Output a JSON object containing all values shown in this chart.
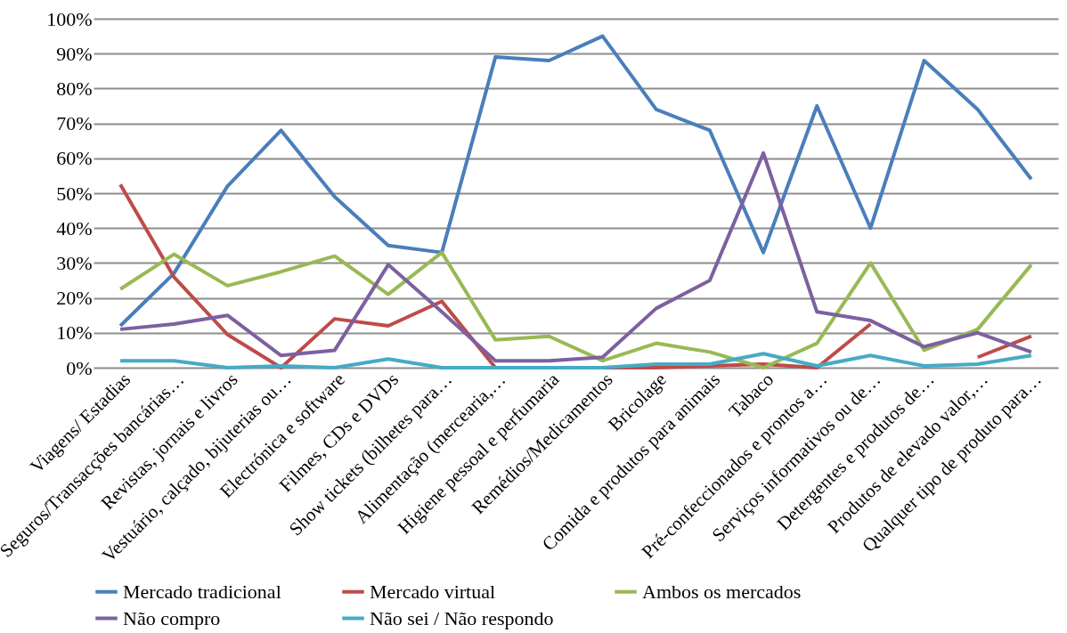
{
  "chart_data": {
    "type": "line",
    "categories": [
      "Viagens/ Estadias",
      "Seguros/Transacções bancárias…",
      "Revistas, jornais e livros",
      "Vestuário, calçado, bijuterias ou…",
      "Electrónica e software",
      "Filmes, CDs e DVDs",
      "Show tickets (bilhetes para…",
      "Alimentação (mercearia,…",
      "Higiene pessoal e perfumaria",
      "Remédios/Medicamentos",
      "Bricolage",
      "Comida e produtos para animais",
      "Tabaco",
      "Pré-confeccionados e prontos a…",
      "Serviços informativos ou de…",
      "Detergentes e produtos de…",
      "Produtos de elevado valor,…",
      "Qualquer tipo de produto para…"
    ],
    "series": [
      {
        "name": "Mercado tradicional",
        "color": "#4a7ebb",
        "values": [
          12,
          27,
          52,
          68,
          49,
          35,
          33,
          89,
          88,
          95,
          74,
          68,
          33,
          75,
          40,
          88,
          74,
          54
        ]
      },
      {
        "name": "Mercado virtual",
        "color": "#be4b48",
        "values": [
          52.5,
          26,
          9.5,
          0,
          14,
          12,
          19,
          0,
          0,
          0,
          0,
          0.5,
          1,
          0,
          12.5,
          null,
          3,
          9
        ]
      },
      {
        "name": "Ambos os mercados",
        "color": "#98b954",
        "values": [
          22.5,
          32.5,
          23.5,
          27.5,
          32,
          21,
          33,
          8,
          9,
          2,
          7,
          4.5,
          0,
          7,
          30,
          5,
          11,
          29.5
        ]
      },
      {
        "name": "Não compro",
        "color": "#7d60a0",
        "values": [
          11,
          12.5,
          15,
          3.5,
          5,
          29.5,
          16,
          2,
          2,
          3,
          17,
          25,
          61.5,
          16,
          13.5,
          6,
          10,
          4.5
        ]
      },
      {
        "name": "Não sei / Não respondo",
        "color": "#46aac5",
        "values": [
          2,
          2,
          0,
          0.5,
          0,
          2.5,
          0,
          0,
          0,
          0,
          1,
          1,
          4,
          0.5,
          3.5,
          0.5,
          1,
          3.5
        ]
      }
    ],
    "ylim": [
      0,
      100
    ],
    "yticks": [
      {
        "value": 0,
        "label": "0%"
      },
      {
        "value": 10,
        "label": "10%"
      },
      {
        "value": 20,
        "label": "20%"
      },
      {
        "value": 30,
        "label": "30%"
      },
      {
        "value": 40,
        "label": "40%"
      },
      {
        "value": 50,
        "label": "50%"
      },
      {
        "value": 60,
        "label": "60%"
      },
      {
        "value": 70,
        "label": "70%"
      },
      {
        "value": 80,
        "label": "80%"
      },
      {
        "value": 90,
        "label": "90%"
      },
      {
        "value": 100,
        "label": "100%"
      }
    ],
    "grid": "y",
    "legend": "bottom",
    "marker": "none",
    "line_style": "solid"
  }
}
